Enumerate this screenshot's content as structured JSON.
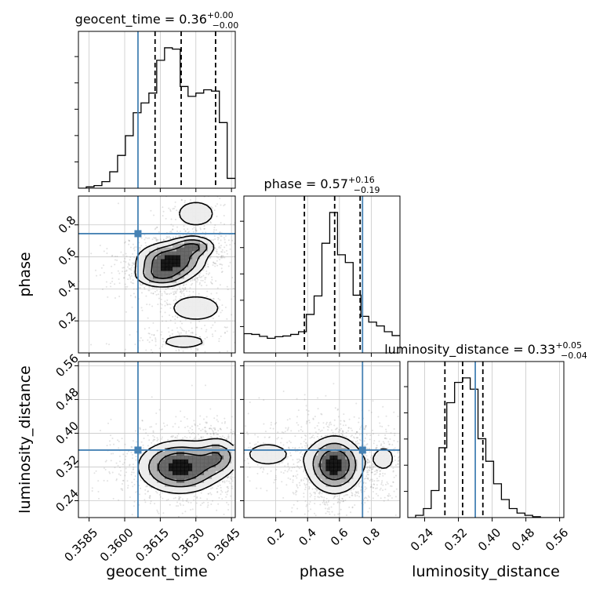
{
  "figure": {
    "type": "corner-plot",
    "colors": {
      "truth": "#4682b4",
      "hist": "#000000",
      "grid": "#c8c8c8",
      "scatter": "#8a8a8a"
    }
  },
  "chart_data": {
    "type": "corner",
    "parameters": [
      "geocent_time",
      "phase",
      "luminosity_distance"
    ],
    "truths": {
      "geocent_time": 0.36056,
      "phase": 0.745,
      "luminosity_distance": 0.36
    },
    "titles": [
      {
        "param": "geocent_time",
        "main": "geocent_time = 0.36",
        "sup": "+0.00",
        "sub": "−0.00"
      },
      {
        "param": "phase",
        "main": "phase = 0.57",
        "sup": "+0.16",
        "sub": "−0.19"
      },
      {
        "param": "luminosity_distance",
        "main": "luminosity_distance = 0.33",
        "sup": "+0.05",
        "sub": "−0.04"
      }
    ],
    "axis_labels": {
      "x": [
        "geocent_time",
        "phase",
        "luminosity_distance"
      ],
      "y": [
        "phase",
        "luminosity_distance"
      ]
    },
    "ranges": {
      "geocent_time": [
        0.35805,
        0.36466
      ],
      "phase": [
        0.0,
        0.98
      ],
      "luminosity_distance": [
        0.2,
        0.57
      ]
    },
    "ticks": {
      "geocent_time": [
        "0.3585",
        "0.3600",
        "0.3615",
        "0.3630",
        "0.3645"
      ],
      "phase": [
        "0.2",
        "0.4",
        "0.6",
        "0.8"
      ],
      "luminosity_distance": [
        "0.24",
        "0.32",
        "0.40",
        "0.48",
        "0.56"
      ]
    },
    "quantiles": {
      "geocent_time": [
        0.36128,
        0.36238,
        0.36383
      ],
      "phase": [
        0.38,
        0.57,
        0.73
      ],
      "luminosity_distance": [
        0.288,
        0.33,
        0.378
      ]
    },
    "hist1d": {
      "geocent_time": {
        "edges": [
          0.35805,
          0.35838,
          0.35871,
          0.35904,
          0.35937,
          0.3597,
          0.36003,
          0.36036,
          0.36069,
          0.36102,
          0.36135,
          0.36168,
          0.36201,
          0.36234,
          0.36267,
          0.363,
          0.36333,
          0.36366,
          0.36399,
          0.36432,
          0.36466
        ],
        "counts": [
          0,
          2,
          4,
          10,
          25,
          50,
          80,
          115,
          130,
          145,
          195,
          214,
          212,
          155,
          140,
          145,
          150,
          148,
          100,
          15
        ]
      },
      "phase": {
        "edges": [
          0.0,
          0.049,
          0.098,
          0.147,
          0.196,
          0.245,
          0.294,
          0.343,
          0.392,
          0.441,
          0.49,
          0.539,
          0.588,
          0.637,
          0.686,
          0.735,
          0.784,
          0.833,
          0.882,
          0.931,
          0.98
        ],
        "counts": [
          50,
          48,
          43,
          38,
          42,
          44,
          48,
          55,
          100,
          148,
          285,
          365,
          255,
          235,
          150,
          95,
          80,
          70,
          55,
          45
        ]
      },
      "luminosity_distance": {
        "edges": [
          0.2,
          0.2185,
          0.237,
          0.2555,
          0.274,
          0.2925,
          0.311,
          0.3295,
          0.348,
          0.3665,
          0.385,
          0.4035,
          0.422,
          0.4405,
          0.459,
          0.4775,
          0.496,
          0.5145,
          0.533,
          0.5515,
          0.57
        ],
        "counts": [
          0,
          5,
          20,
          60,
          155,
          255,
          300,
          310,
          285,
          175,
          125,
          75,
          40,
          20,
          10,
          5,
          2,
          0,
          0,
          0
        ]
      }
    },
    "pairs": [
      {
        "x": "geocent_time",
        "y": "phase",
        "modes": [
          {
            "x": 0.36195,
            "y": 0.575,
            "sx": 0.00075,
            "sy": 0.06,
            "w": 1.0
          },
          {
            "x": 0.3629,
            "y": 0.665,
            "sx": 0.0005,
            "sy": 0.035,
            "w": 0.6
          },
          {
            "x": 0.3615,
            "y": 0.48,
            "sx": 0.0006,
            "sy": 0.04,
            "w": 0.5
          },
          {
            "x": 0.363,
            "y": 0.87,
            "sx": 0.0006,
            "sy": 0.06,
            "w": 0.3
          },
          {
            "x": 0.363,
            "y": 0.28,
            "sx": 0.0008,
            "sy": 0.06,
            "w": 0.3
          },
          {
            "x": 0.3625,
            "y": 0.07,
            "sx": 0.0008,
            "sy": 0.035,
            "w": 0.25
          }
        ],
        "peak_density": 2.6
      },
      {
        "x": "geocent_time",
        "y": "luminosity_distance",
        "modes": [
          {
            "x": 0.36233,
            "y": 0.32,
            "sx": 0.0009,
            "sy": 0.032,
            "w": 1.0
          },
          {
            "x": 0.36395,
            "y": 0.345,
            "sx": 0.0005,
            "sy": 0.025,
            "w": 0.5
          }
        ],
        "peak_density": 1.2
      },
      {
        "x": "phase",
        "y": "luminosity_distance",
        "modes": [
          {
            "x": 0.57,
            "y": 0.325,
            "sx": 0.09,
            "sy": 0.035,
            "w": 1.0
          },
          {
            "x": 0.15,
            "y": 0.35,
            "sx": 0.15,
            "sy": 0.03,
            "w": 0.2
          },
          {
            "x": 0.88,
            "y": 0.34,
            "sx": 0.07,
            "sy": 0.03,
            "w": 0.2
          }
        ],
        "peak_density": 1.1
      }
    ]
  }
}
